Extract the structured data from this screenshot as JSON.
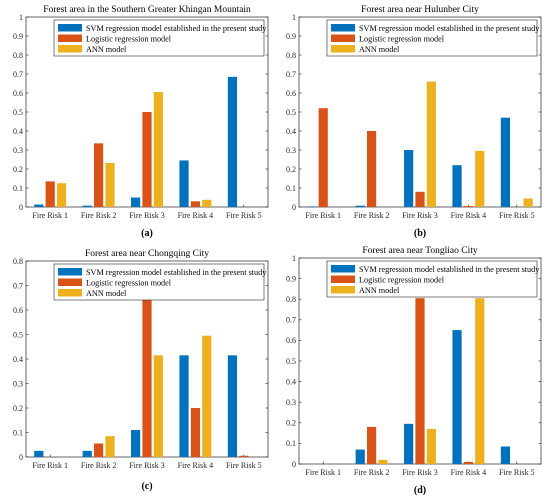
{
  "colors": {
    "svm": "#0072BD",
    "logistic": "#D95319",
    "ann": "#EDB120"
  },
  "chart_data": [
    {
      "type": "bar",
      "title": "Forest area in the Southern Greater Khingan Mountain",
      "caption": "(a)",
      "categories": [
        "Fire Risk 1",
        "Fire Risk 2",
        "Fire Risk 3",
        "Fire Risk 4",
        "Fire Risk 5"
      ],
      "ylim": [
        0,
        1
      ],
      "yticks": [
        "0",
        "0.1",
        "0.2",
        "0.3",
        "0.4",
        "0.5",
        "0.6",
        "0.7",
        "0.8",
        "0.9",
        "1"
      ],
      "legend_position": "top-right",
      "series": [
        {
          "name": "SVM regression model established in the present study",
          "values": [
            0.013,
            0.007,
            0.05,
            0.245,
            0.685
          ]
        },
        {
          "name": "Logistic regression model",
          "values": [
            0.135,
            0.335,
            0.5,
            0.03,
            0
          ]
        },
        {
          "name": "ANN model",
          "values": [
            0.125,
            0.232,
            0.605,
            0.038,
            0
          ]
        }
      ]
    },
    {
      "type": "bar",
      "title": "Forest area near Hulunber City",
      "caption": "(b)",
      "categories": [
        "Fire Risk 1",
        "Fire Risk 2",
        "Fire Risk 3",
        "Fire Risk 4",
        "Fire Risk 5"
      ],
      "ylim": [
        0,
        1
      ],
      "yticks": [
        "0",
        "0.1",
        "0.2",
        "0.3",
        "0.4",
        "0.5",
        "0.6",
        "0.7",
        "0.8",
        "0.9",
        "1"
      ],
      "legend_position": "top-right",
      "series": [
        {
          "name": "SVM regression model established in the present study",
          "values": [
            0.003,
            0.007,
            0.3,
            0.22,
            0.47
          ]
        },
        {
          "name": "Logistic regression model",
          "values": [
            0.52,
            0.4,
            0.08,
            0.005,
            0
          ]
        },
        {
          "name": "ANN model",
          "values": [
            0,
            0,
            0.66,
            0.295,
            0.045
          ]
        }
      ]
    },
    {
      "type": "bar",
      "title": "Forest area near Chongqing City",
      "caption": "(c)",
      "categories": [
        "Fire Risk 1",
        "Fire Risk 2",
        "Fire Risk 3",
        "Fire Risk 4",
        "Fire Risk 5"
      ],
      "ylim": [
        0,
        0.8
      ],
      "yticks": [
        "0",
        "0.1",
        "0.2",
        "0.3",
        "0.4",
        "0.5",
        "0.6",
        "0.7",
        "0.8"
      ],
      "legend_position": "top-right",
      "series": [
        {
          "name": "SVM regression model established in the present study",
          "values": [
            0.025,
            0.025,
            0.11,
            0.415,
            0.415
          ]
        },
        {
          "name": "Logistic regression model",
          "values": [
            0,
            0.055,
            0.65,
            0.2,
            0.005
          ]
        },
        {
          "name": "ANN model",
          "values": [
            0,
            0.085,
            0.415,
            0.495,
            0
          ]
        }
      ]
    },
    {
      "type": "bar",
      "title": "Forest area near Tongliao City",
      "caption": "(d)",
      "categories": [
        "Fire Risk 1",
        "Fire Risk 2",
        "Fire Risk 3",
        "Fire Risk 4",
        "Fire Risk 5"
      ],
      "ylim": [
        0,
        1
      ],
      "yticks": [
        "0",
        "0.1",
        "0.2",
        "0.3",
        "0.4",
        "0.5",
        "0.6",
        "0.7",
        "0.8",
        "0.9",
        "1"
      ],
      "legend_position": "top-right",
      "series": [
        {
          "name": "SVM regression model established in the present study",
          "values": [
            0,
            0.07,
            0.195,
            0.65,
            0.085
          ]
        },
        {
          "name": "Logistic regression model",
          "values": [
            0,
            0.18,
            0.805,
            0.01,
            0
          ]
        },
        {
          "name": "ANN model",
          "values": [
            0,
            0.02,
            0.17,
            0.805,
            0
          ]
        }
      ]
    }
  ]
}
